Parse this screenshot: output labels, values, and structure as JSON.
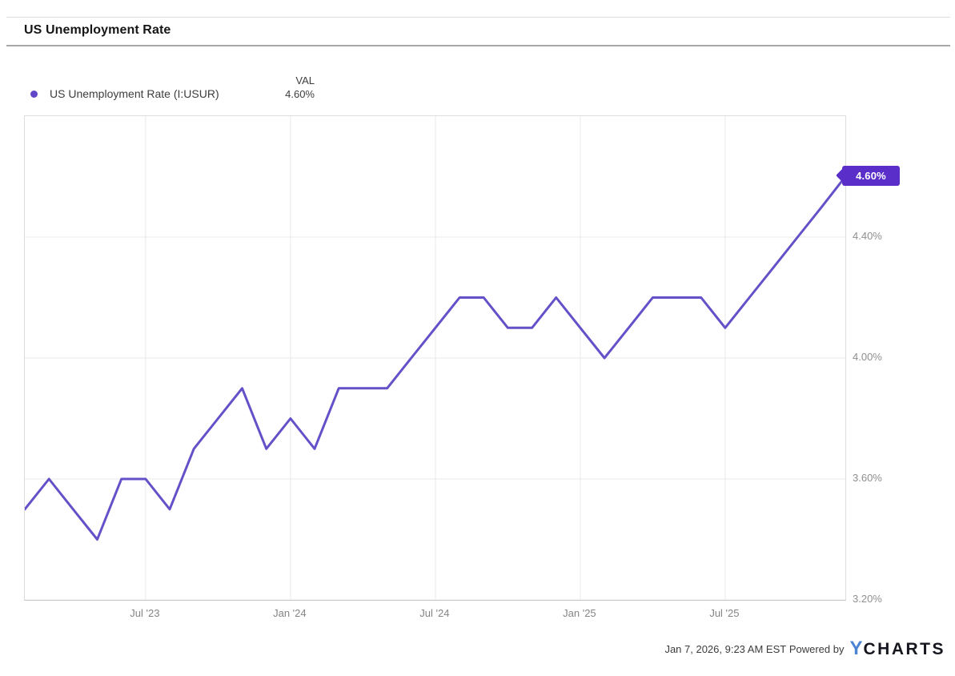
{
  "header": {
    "title": "US Unemployment Rate"
  },
  "legend": {
    "val_header": "VAL",
    "series_label": "US Unemployment Rate (I:USUR)",
    "series_value": "4.60%",
    "dot_color": "#6246c8"
  },
  "chart_data": {
    "type": "line",
    "title": "US Unemployment Rate",
    "grid": true,
    "ylim": [
      3.2,
      4.8
    ],
    "ylabel": "",
    "xlabel": "",
    "series": [
      {
        "name": "US Unemployment Rate (I:USUR)",
        "color": "#6450c8",
        "start_month": "2023-02",
        "end_month": "2025-12",
        "values": [
          3.5,
          3.6,
          3.5,
          3.4,
          3.6,
          3.6,
          3.5,
          3.7,
          3.8,
          3.9,
          3.7,
          3.8,
          3.7,
          3.9,
          3.9,
          3.9,
          4.0,
          4.1,
          4.2,
          4.2,
          4.1,
          4.1,
          4.2,
          4.1,
          4.0,
          4.1,
          4.2,
          4.2,
          4.2,
          4.1,
          4.2,
          4.3,
          4.4,
          4.5,
          4.6
        ]
      }
    ],
    "x_ticks": [
      {
        "label": "Jul '23",
        "month_index": 5
      },
      {
        "label": "Jan '24",
        "month_index": 11
      },
      {
        "label": "Jul '24",
        "month_index": 17
      },
      {
        "label": "Jan '25",
        "month_index": 23
      },
      {
        "label": "Jul '25",
        "month_index": 29
      }
    ],
    "y_ticks": [
      {
        "label": "4.40%",
        "value": 4.4
      },
      {
        "label": "4.00%",
        "value": 4.0
      },
      {
        "label": "3.60%",
        "value": 3.6
      },
      {
        "label": "3.20%",
        "value": 3.2
      }
    ],
    "end_label": "4.60%",
    "end_label_bg": "#5a2ec8",
    "gridline_color": "#e9e9e9"
  },
  "footer": {
    "timestamp": "Jan 7, 2026, 9:23 AM EST",
    "powered_by": "Powered by",
    "logo_y": "Y",
    "logo_rest": "CHARTS"
  }
}
